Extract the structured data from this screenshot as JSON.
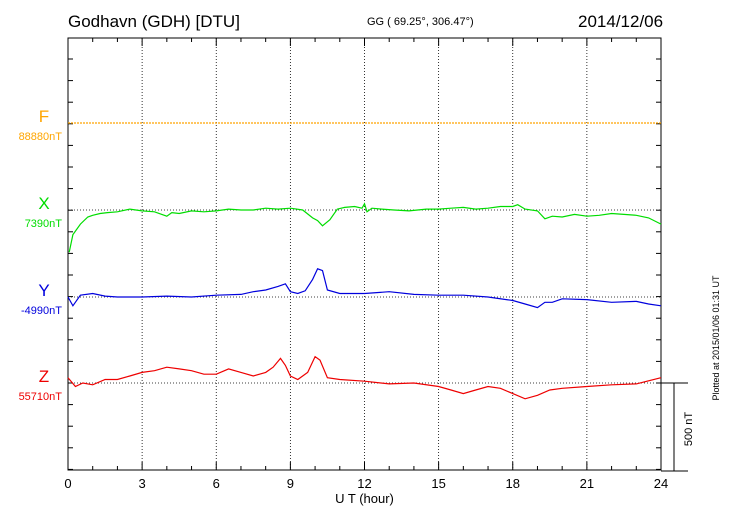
{
  "header": {
    "station": "Godhavn (GDH)  [DTU]",
    "coords": "GG ( 69.25°, 306.47°)",
    "date": "2014/12/06",
    "plotted": "Plotted at 2015/01/06 01:31 UT"
  },
  "chart_data": {
    "type": "line",
    "xlabel": "U T (hour)",
    "xlim": [
      0,
      24
    ],
    "xticks": [
      "0",
      "3",
      "6",
      "9",
      "12",
      "15",
      "18",
      "21",
      "24"
    ],
    "scale_bar_label": "500 nT",
    "grid": true,
    "series": [
      {
        "name": "F",
        "baseline_label": "88880nT",
        "color": "#FFA500",
        "x": [
          0,
          24
        ],
        "y": [
          0,
          0
        ]
      },
      {
        "name": "X",
        "baseline_label": "7390nT",
        "color": "#00DD00",
        "x": [
          0.05,
          0.2,
          0.5,
          0.8,
          1.0,
          1.3,
          1.6,
          2.0,
          2.5,
          3.0,
          3.5,
          4.0,
          4.2,
          4.5,
          5.0,
          5.5,
          6.0,
          6.5,
          7.0,
          7.5,
          8.0,
          8.5,
          9.0,
          9.5,
          9.9,
          10.1,
          10.3,
          10.6,
          10.9,
          11.2,
          11.6,
          11.9,
          12.0,
          12.1,
          12.3,
          12.7,
          13.2,
          13.8,
          14.5,
          15.0,
          15.5,
          16.0,
          16.5,
          17.0,
          17.5,
          18.0,
          18.2,
          18.5,
          19.0,
          19.3,
          19.6,
          20.0,
          20.5,
          21.0,
          21.5,
          22.0,
          22.5,
          23.0,
          23.5,
          24.0
        ],
        "y": [
          -240,
          -140,
          -80,
          -40,
          -30,
          -20,
          -15,
          -10,
          5,
          -5,
          -10,
          -35,
          -15,
          -20,
          -5,
          -10,
          -5,
          5,
          0,
          0,
          10,
          5,
          10,
          0,
          -45,
          -60,
          -90,
          -55,
          5,
          15,
          20,
          10,
          35,
          -10,
          10,
          5,
          0,
          -5,
          5,
          5,
          10,
          15,
          5,
          10,
          20,
          20,
          30,
          5,
          -5,
          -50,
          -35,
          -40,
          -25,
          -35,
          -30,
          -20,
          -25,
          -30,
          -45,
          -80
        ]
      },
      {
        "name": "Y",
        "baseline_label": "-4990nT",
        "color": "#0000DD",
        "x": [
          0,
          0.2,
          0.5,
          1.0,
          1.5,
          2.0,
          3.0,
          4.0,
          5.0,
          6.0,
          7.0,
          7.5,
          8.0,
          8.5,
          8.8,
          9.0,
          9.3,
          9.6,
          9.9,
          10.1,
          10.3,
          10.5,
          11.0,
          12.0,
          13.0,
          14.0,
          15.0,
          16.0,
          17.0,
          18.0,
          18.5,
          19.0,
          19.3,
          19.6,
          20.0,
          21.0,
          22.0,
          23.0,
          23.5,
          24.0
        ],
        "y": [
          0,
          -50,
          10,
          20,
          5,
          0,
          0,
          5,
          0,
          10,
          15,
          30,
          40,
          60,
          75,
          30,
          20,
          35,
          100,
          160,
          150,
          40,
          20,
          20,
          30,
          15,
          10,
          10,
          0,
          -20,
          -40,
          -60,
          -30,
          -30,
          -10,
          -15,
          -30,
          -25,
          -40,
          -50
        ]
      },
      {
        "name": "Z",
        "baseline_label": "55710nT",
        "color": "#EE0000",
        "x": [
          0,
          0.3,
          0.6,
          1.0,
          1.5,
          2.0,
          2.5,
          3.0,
          3.5,
          4.0,
          4.5,
          5.0,
          5.5,
          6.0,
          6.5,
          7.0,
          7.5,
          8.0,
          8.3,
          8.6,
          8.8,
          9.0,
          9.3,
          9.7,
          10.0,
          10.2,
          10.5,
          11.0,
          12.0,
          13.0,
          14.0,
          15.0,
          15.5,
          16.0,
          16.5,
          17.0,
          17.5,
          18.0,
          18.5,
          19.0,
          19.5,
          20.0,
          21.0,
          22.0,
          23.0,
          24.0
        ],
        "y": [
          30,
          -20,
          0,
          -10,
          20,
          20,
          40,
          60,
          70,
          90,
          80,
          70,
          50,
          50,
          80,
          60,
          40,
          60,
          90,
          140,
          100,
          40,
          20,
          60,
          150,
          130,
          30,
          20,
          10,
          -5,
          0,
          -20,
          -40,
          -60,
          -40,
          -20,
          -30,
          -60,
          -90,
          -70,
          -40,
          -30,
          -20,
          -10,
          -5,
          30
        ]
      }
    ]
  }
}
